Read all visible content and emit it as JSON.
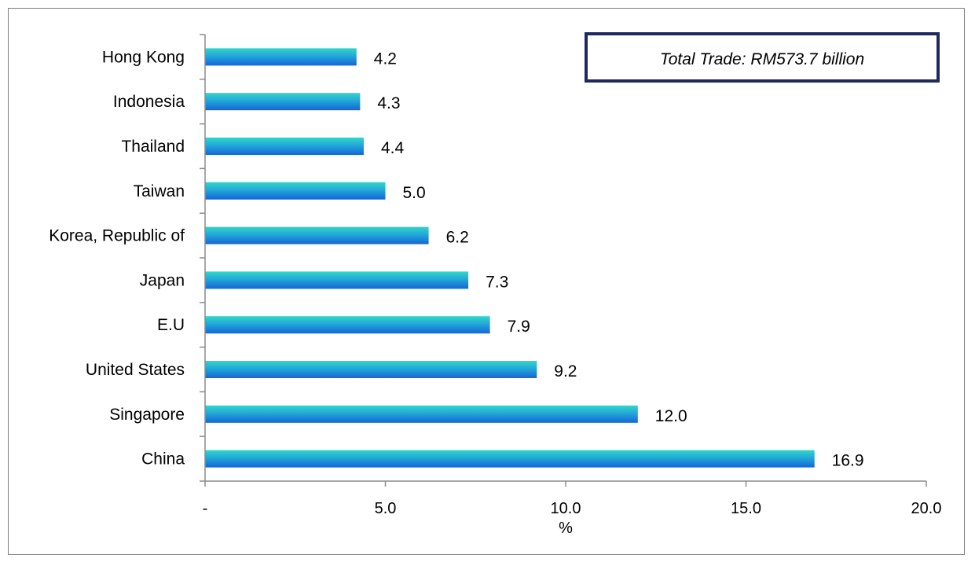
{
  "chart_data": {
    "type": "bar",
    "orientation": "horizontal",
    "categories": [
      "Hong Kong",
      "Indonesia",
      "Thailand",
      "Taiwan",
      "Korea, Republic of",
      "Japan",
      "E.U",
      "United States",
      "Singapore",
      "China"
    ],
    "values": [
      4.2,
      4.3,
      4.4,
      5.0,
      6.2,
      7.3,
      7.9,
      9.2,
      12.0,
      16.9
    ],
    "value_labels": [
      "4.2",
      "4.3",
      "4.4",
      "5.0",
      "6.2",
      "7.3",
      "7.9",
      "9.2",
      "12.0",
      "16.9"
    ],
    "xlabel": "%",
    "xlim": [
      0,
      20
    ],
    "x_ticks": [
      0,
      5,
      10,
      15,
      20
    ],
    "x_tick_labels": [
      "-",
      "5.0",
      "10.0",
      "15.0",
      "20.0"
    ],
    "grid": false,
    "annotation": "Total Trade: RM573.7 billion",
    "colors": {
      "bar_top": "#33d6c8",
      "bar_bottom": "#1565d8",
      "axis": "#8c8c8c",
      "annotation_border": "#1f2a5a"
    }
  }
}
